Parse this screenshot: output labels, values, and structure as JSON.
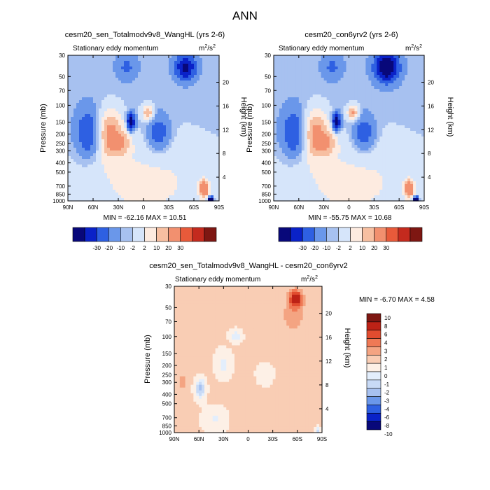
{
  "figure": {
    "main_title": "ANN"
  },
  "colors": {
    "palette_12": [
      "#08087a",
      "#0a22c8",
      "#2e60e2",
      "#6a97ea",
      "#a7c1f0",
      "#d6e5fa",
      "#fdebe0",
      "#f7bfa1",
      "#f2906f",
      "#e85a3a",
      "#c42a1e",
      "#7e1712"
    ],
    "palette_14": [
      "#08087a",
      "#0a22c8",
      "#2e60e2",
      "#6a97ea",
      "#a7c1f0",
      "#c8daf6",
      "#e3eefc",
      "#fdf0e6",
      "#f9cdb4",
      "#f4a482",
      "#ef7955",
      "#e14c2f",
      "#bd2216",
      "#7e1712"
    ]
  },
  "panels": [
    {
      "id": "p1",
      "title": "cesm20_sen_Totalmodv9v8_WangHL (yrs 2-6)",
      "left_label": "Stationary eddy momentum",
      "units_base": "m",
      "units_exp": "2",
      "units_div": "/s",
      "units_exp2": "2",
      "ylabel": "Pressure (mb)",
      "ylabel_right": "Height (km)",
      "stats": "MIN = -62.16  MAX =  10.51"
    },
    {
      "id": "p2",
      "title": "cesm20_con6yrv2 (yrs 2-6)",
      "left_label": "Stationary eddy momentum",
      "units_base": "m",
      "units_exp": "2",
      "units_div": "/s",
      "units_exp2": "2",
      "ylabel": "Pressure (mb)",
      "ylabel_right": "Height (km)",
      "stats": "MIN = -55.75  MAX =  10.68"
    },
    {
      "id": "p3",
      "title": "cesm20_sen_Totalmodv9v8_WangHL - cesm20_con6yrv2",
      "left_label": "Stationary eddy momentum",
      "units_base": "m",
      "units_exp": "2",
      "units_div": "/s",
      "units_exp2": "2",
      "ylabel": "Pressure (mb)",
      "ylabel_right": "Height (km)",
      "stats": "MIN = -6.70  MAX =   4.58"
    }
  ],
  "colorbar_top_labels": [
    "-30",
    "-20",
    "-10",
    "-2",
    "2",
    "10",
    "20",
    "30"
  ],
  "colorbar_diff_labels": [
    "10",
    "8",
    "6",
    "4",
    "3",
    "2",
    "1",
    "0",
    "-1",
    "-2",
    "-3",
    "-4",
    "-6",
    "-8",
    "-10"
  ],
  "chart_data": {
    "type": "heatmap",
    "x_ticks": [
      "90N",
      "60N",
      "30N",
      "0",
      "30S",
      "60S",
      "90S"
    ],
    "y_ticks_pressure": [
      "30",
      "50",
      "70",
      "100",
      "150",
      "200",
      "250",
      "300",
      "400",
      "500",
      "700",
      "850",
      "1000"
    ],
    "y_ticks_height": [
      "20",
      "16",
      "12",
      "8",
      "4"
    ],
    "pressure_range_mb": [
      30,
      1000
    ],
    "pressure_scale": "log",
    "panels": [
      {
        "title": "cesm20_sen_Totalmodv9v8_WangHL (yrs 2-6)",
        "min": -62.16,
        "max": 10.51,
        "levels": [
          -30,
          -20,
          -10,
          -2,
          2,
          10,
          20,
          30
        ],
        "features": [
          {
            "lat": -2,
            "p": 650,
            "rlat": 90,
            "rlogp": 1.2,
            "v": 1.2
          },
          {
            "lat": 40,
            "p": 200,
            "rlat": 14,
            "rlogp": 0.55,
            "v": 3.5
          },
          {
            "lat": 25,
            "p": 250,
            "rlat": 10,
            "rlogp": 0.28,
            "v": 2.0
          },
          {
            "lat": -5,
            "p": 120,
            "rlat": 6,
            "rlogp": 0.18,
            "v": 3.0
          },
          {
            "lat": -18,
            "p": 200,
            "rlat": 14,
            "rlogp": 0.45,
            "v": -2.0
          },
          {
            "lat": 15,
            "p": 150,
            "rlat": 5,
            "rlogp": 0.22,
            "v": -4.0
          },
          {
            "lat": 65,
            "p": 200,
            "rlat": 16,
            "rlogp": 0.6,
            "v": -2.2
          },
          {
            "lat": -50,
            "p": 40,
            "rlat": 12,
            "rlogp": 0.3,
            "v": -3.5
          },
          {
            "lat": 20,
            "p": 40,
            "rlat": 12,
            "rlogp": 0.3,
            "v": -1.2
          },
          {
            "lat": -72,
            "p": 750,
            "rlat": 5,
            "rlogp": 0.18,
            "v": 6.0
          },
          {
            "lat": -80,
            "p": 1000,
            "rlat": 3,
            "rlogp": 0.08,
            "v": -12.0
          }
        ]
      },
      {
        "title": "cesm20_con6yrv2 (yrs 2-6)",
        "min": -55.75,
        "max": 10.68,
        "levels": [
          -30,
          -20,
          -10,
          -2,
          2,
          10,
          20,
          30
        ],
        "features": [
          {
            "lat": -2,
            "p": 650,
            "rlat": 90,
            "rlogp": 1.2,
            "v": 1.2
          },
          {
            "lat": 40,
            "p": 200,
            "rlat": 14,
            "rlogp": 0.55,
            "v": 3.5
          },
          {
            "lat": 25,
            "p": 250,
            "rlat": 10,
            "rlogp": 0.28,
            "v": 2.0
          },
          {
            "lat": -5,
            "p": 120,
            "rlat": 6,
            "rlogp": 0.18,
            "v": 3.2
          },
          {
            "lat": -18,
            "p": 200,
            "rlat": 14,
            "rlogp": 0.45,
            "v": -2.0
          },
          {
            "lat": 15,
            "p": 150,
            "rlat": 5,
            "rlogp": 0.22,
            "v": -4.0
          },
          {
            "lat": 65,
            "p": 200,
            "rlat": 16,
            "rlogp": 0.6,
            "v": -2.2
          },
          {
            "lat": -45,
            "p": 40,
            "rlat": 14,
            "rlogp": 0.35,
            "v": -4.5
          },
          {
            "lat": 20,
            "p": 40,
            "rlat": 12,
            "rlogp": 0.3,
            "v": -1.2
          },
          {
            "lat": -72,
            "p": 750,
            "rlat": 5,
            "rlogp": 0.18,
            "v": 6.0
          },
          {
            "lat": -80,
            "p": 1000,
            "rlat": 3,
            "rlogp": 0.08,
            "v": -12.0
          }
        ]
      },
      {
        "title": "cesm20_sen_Totalmodv9v8_WangHL - cesm20_con6yrv2",
        "min": -6.7,
        "max": 4.58,
        "levels": [
          -10,
          -8,
          -6,
          -4,
          -3,
          -2,
          -1,
          0,
          1,
          2,
          3,
          4,
          6,
          8,
          10
        ],
        "features": [
          {
            "lat": 0,
            "p": 300,
            "rlat": 80,
            "rlogp": 1.0,
            "v": 0.3
          },
          {
            "lat": -58,
            "p": 40,
            "rlat": 8,
            "rlogp": 0.2,
            "v": 5.0
          },
          {
            "lat": -55,
            "p": 60,
            "rlat": 14,
            "rlogp": 0.4,
            "v": 1.8
          },
          {
            "lat": 58,
            "p": 350,
            "rlat": 6,
            "rlogp": 0.22,
            "v": -3.5
          },
          {
            "lat": 15,
            "p": 100,
            "rlat": 6,
            "rlogp": 0.12,
            "v": -2.0
          },
          {
            "lat": 30,
            "p": 200,
            "rlat": 10,
            "rlogp": 0.3,
            "v": -1.5
          },
          {
            "lat": 80,
            "p": 300,
            "rlat": 5,
            "rlogp": 0.2,
            "v": 1.5
          },
          {
            "lat": -20,
            "p": 250,
            "rlat": 10,
            "rlogp": 0.25,
            "v": -1.2
          },
          {
            "lat": 40,
            "p": 700,
            "rlat": 12,
            "rlogp": 0.25,
            "v": -1.2
          },
          {
            "lat": -85,
            "p": 950,
            "rlat": 3,
            "rlogp": 0.06,
            "v": -2.5
          }
        ]
      }
    ]
  }
}
